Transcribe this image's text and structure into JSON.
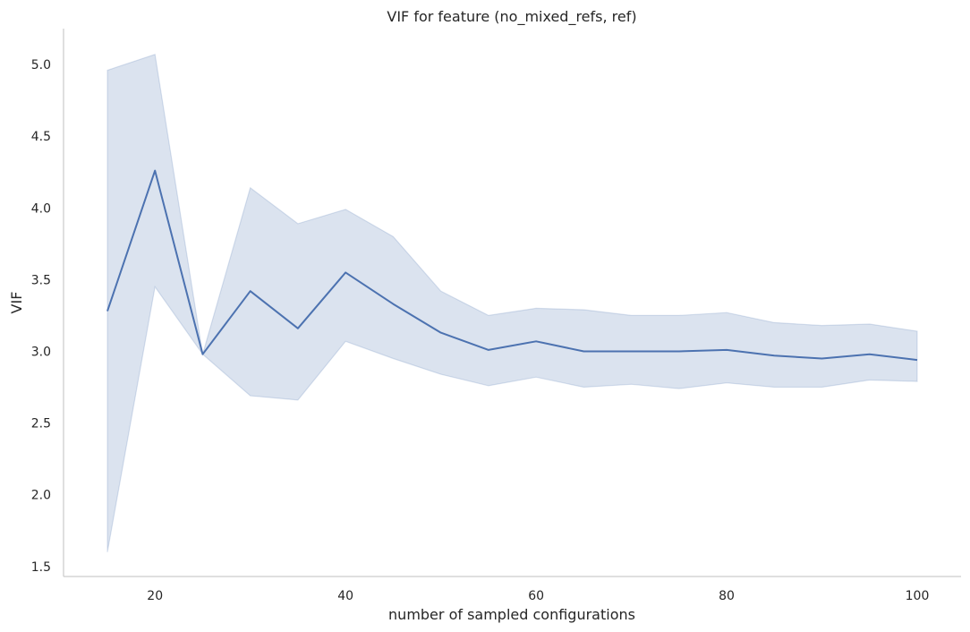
{
  "chart_data": {
    "type": "line",
    "title": "VIF for feature (no_mixed_refs, ref)",
    "xlabel": "number of sampled configurations",
    "ylabel": "VIF",
    "xlim": [
      10.4,
      104.6
    ],
    "ylim": [
      1.43,
      5.25
    ],
    "xticks": [
      20,
      40,
      60,
      80,
      100
    ],
    "yticks": [
      1.5,
      2.0,
      2.5,
      3.0,
      3.5,
      4.0,
      4.5,
      5.0
    ],
    "grid": false,
    "colors": {
      "line": "#4c72b0",
      "band": "#4c72b0"
    },
    "series": [
      {
        "x": [
          15,
          20,
          25,
          30,
          35,
          40,
          45,
          50,
          55,
          60,
          65,
          70,
          75,
          80,
          85,
          90,
          95,
          100
        ],
        "y": [
          3.28,
          4.26,
          2.98,
          3.42,
          3.16,
          3.55,
          3.33,
          3.13,
          3.01,
          3.07,
          3.0,
          3.0,
          3.0,
          3.01,
          2.97,
          2.95,
          2.98,
          2.94
        ]
      }
    ],
    "band": {
      "x": [
        15,
        20,
        25,
        30,
        35,
        40,
        45,
        50,
        55,
        60,
        65,
        70,
        75,
        80,
        85,
        90,
        95,
        100
      ],
      "lower": [
        1.6,
        3.45,
        2.98,
        2.69,
        2.66,
        3.07,
        2.95,
        2.84,
        2.76,
        2.82,
        2.75,
        2.77,
        2.74,
        2.78,
        2.75,
        2.75,
        2.8,
        2.79
      ],
      "upper": [
        4.96,
        5.07,
        2.98,
        4.14,
        3.89,
        3.99,
        3.8,
        3.42,
        3.25,
        3.3,
        3.29,
        3.25,
        3.25,
        3.27,
        3.2,
        3.18,
        3.19,
        3.14
      ]
    }
  }
}
